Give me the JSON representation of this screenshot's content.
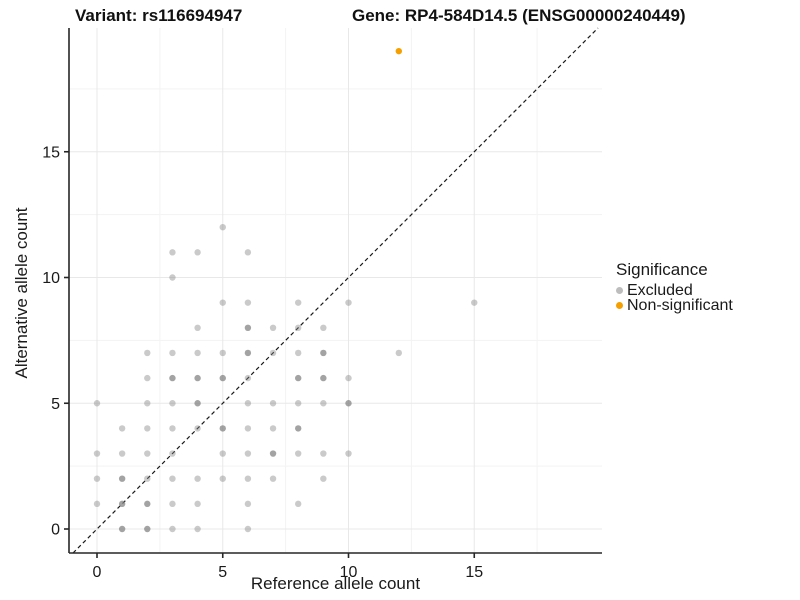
{
  "header": {
    "title_left": "Variant: rs116694947",
    "title_right": "Gene: RP4-584D14.5 (ENSG00000240449)"
  },
  "chart_data": {
    "type": "scatter",
    "xlabel": "Reference allele count",
    "ylabel": "Alternative allele count",
    "x_ticks": [
      0,
      5,
      10,
      15
    ],
    "y_ticks": [
      0,
      5,
      10,
      15
    ],
    "minor_ticks": [
      2.5,
      7.5,
      12.5,
      17.5
    ],
    "xlim": [
      -1.1,
      20.1
    ],
    "ylim": [
      -1.0,
      19.9
    ],
    "grid": "major+minor",
    "identity_line": {
      "style": "dashed",
      "equation": "y = x",
      "color": "#1a1a1a"
    },
    "legend": {
      "title": "Significance",
      "position": "right",
      "items": [
        {
          "label": "Excluded",
          "color": "#bdbdbd"
        },
        {
          "label": "Non-significant",
          "color": "#f6a000"
        }
      ]
    },
    "series": [
      {
        "name": "Excluded",
        "color": "#808080",
        "alpha_single": 0.42,
        "alpha_overlap": 0.72,
        "points": [
          [
            1,
            0,
            2
          ],
          [
            2,
            0,
            2
          ],
          [
            3,
            0,
            1
          ],
          [
            4,
            0,
            1
          ],
          [
            6,
            0,
            1
          ],
          [
            0,
            1,
            1
          ],
          [
            1,
            1,
            2
          ],
          [
            2,
            1,
            2
          ],
          [
            3,
            1,
            1
          ],
          [
            4,
            1,
            1
          ],
          [
            6,
            1,
            1
          ],
          [
            8,
            1,
            1
          ],
          [
            0,
            2,
            1
          ],
          [
            1,
            2,
            2
          ],
          [
            2,
            2,
            1
          ],
          [
            3,
            2,
            1
          ],
          [
            4,
            2,
            1
          ],
          [
            5,
            2,
            1
          ],
          [
            6,
            2,
            1
          ],
          [
            7,
            2,
            1
          ],
          [
            9,
            2,
            1
          ],
          [
            0,
            3,
            1
          ],
          [
            1,
            3,
            1
          ],
          [
            2,
            3,
            1
          ],
          [
            3,
            3,
            1
          ],
          [
            5,
            3,
            1
          ],
          [
            6,
            3,
            1
          ],
          [
            7,
            3,
            2
          ],
          [
            8,
            3,
            1
          ],
          [
            9,
            3,
            1
          ],
          [
            10,
            3,
            1
          ],
          [
            1,
            4,
            1
          ],
          [
            2,
            4,
            1
          ],
          [
            3,
            4,
            1
          ],
          [
            4,
            4,
            1
          ],
          [
            5,
            4,
            2
          ],
          [
            6,
            4,
            1
          ],
          [
            7,
            4,
            1
          ],
          [
            8,
            4,
            2
          ],
          [
            0,
            5,
            1
          ],
          [
            2,
            5,
            1
          ],
          [
            3,
            5,
            1
          ],
          [
            4,
            5,
            2
          ],
          [
            6,
            5,
            1
          ],
          [
            7,
            5,
            1
          ],
          [
            8,
            5,
            1
          ],
          [
            9,
            5,
            1
          ],
          [
            10,
            5,
            2
          ],
          [
            2,
            6,
            1
          ],
          [
            3,
            6,
            2
          ],
          [
            4,
            6,
            2
          ],
          [
            5,
            6,
            2
          ],
          [
            6,
            6,
            1
          ],
          [
            8,
            6,
            2
          ],
          [
            9,
            6,
            2
          ],
          [
            10,
            6,
            1
          ],
          [
            2,
            7,
            1
          ],
          [
            3,
            7,
            1
          ],
          [
            4,
            7,
            1
          ],
          [
            5,
            7,
            1
          ],
          [
            6,
            7,
            2
          ],
          [
            7,
            7,
            1
          ],
          [
            8,
            7,
            1
          ],
          [
            9,
            7,
            2
          ],
          [
            12,
            7,
            1
          ],
          [
            4,
            8,
            1
          ],
          [
            6,
            8,
            2
          ],
          [
            7,
            8,
            1
          ],
          [
            8,
            8,
            1
          ],
          [
            9,
            8,
            1
          ],
          [
            5,
            9,
            1
          ],
          [
            6,
            9,
            1
          ],
          [
            8,
            9,
            1
          ],
          [
            10,
            9,
            1
          ],
          [
            15,
            9,
            1
          ],
          [
            3,
            10,
            1
          ],
          [
            3,
            11,
            1
          ],
          [
            4,
            11,
            1
          ],
          [
            6,
            11,
            1
          ],
          [
            5,
            12,
            1
          ]
        ]
      },
      {
        "name": "Non-significant",
        "color": "#f6a000",
        "alpha_single": 1,
        "alpha_overlap": 1,
        "points": [
          [
            12,
            19,
            1
          ]
        ]
      }
    ]
  },
  "colors": {
    "grid_major": "#e8e8e8",
    "grid_minor": "#f3f3f3",
    "axis_line": "#262626",
    "text": "#1a1a1a",
    "point_gray": "#808080",
    "point_orange": "#f6a000"
  }
}
